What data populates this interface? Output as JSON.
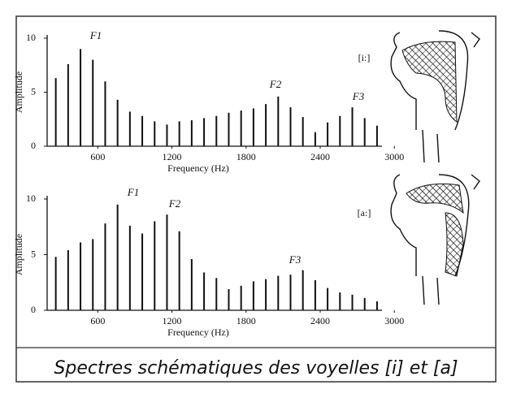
{
  "chart_data": [
    {
      "type": "bar",
      "label": "[i:]",
      "xlabel": "Frequency (Hz)",
      "ylabel": "Amplitude",
      "annotations": [
        "F1",
        "F2",
        "F3"
      ],
      "x": [
        260,
        360,
        460,
        560,
        660,
        760,
        860,
        960,
        1060,
        1160,
        1260,
        1360,
        1460,
        1560,
        1660,
        1760,
        1860,
        1960,
        2060,
        2160,
        2260,
        2360,
        2460,
        2560,
        2660,
        2760,
        2860
      ],
      "values": [
        6.3,
        7.6,
        9.0,
        8.0,
        6.0,
        4.3,
        3.2,
        2.8,
        2.3,
        2.0,
        2.3,
        2.4,
        2.6,
        2.8,
        3.1,
        3.3,
        3.5,
        3.9,
        4.6,
        3.6,
        2.7,
        1.3,
        2.2,
        2.8,
        3.6,
        2.6,
        1.9
      ],
      "color": "#111111",
      "xlim": [
        190,
        2900
      ],
      "ylim": [
        0,
        10
      ],
      "xticks": [
        600,
        1200,
        1800,
        2400,
        3000
      ],
      "yticks": [
        0,
        5,
        10
      ]
    },
    {
      "type": "bar",
      "label": "[a:]",
      "xlabel": "Frequency (Hz)",
      "ylabel": "Amplitude",
      "annotations": [
        "F1",
        "F2",
        "F3"
      ],
      "x": [
        260,
        360,
        460,
        560,
        660,
        760,
        860,
        960,
        1060,
        1160,
        1260,
        1360,
        1460,
        1560,
        1660,
        1760,
        1860,
        1960,
        2060,
        2160,
        2260,
        2360,
        2460,
        2560,
        2660,
        2760,
        2860
      ],
      "values": [
        4.8,
        5.4,
        6.1,
        6.4,
        7.8,
        9.5,
        7.6,
        6.9,
        8.0,
        8.6,
        7.1,
        4.6,
        3.4,
        2.9,
        1.9,
        2.2,
        2.6,
        2.8,
        3.1,
        3.2,
        3.6,
        2.7,
        2.0,
        1.6,
        1.4,
        1.1,
        0.8
      ],
      "color": "#111111",
      "xlim": [
        190,
        2900
      ],
      "ylim": [
        0,
        10
      ],
      "xticks": [
        600,
        1200,
        1800,
        2400,
        3000
      ],
      "yticks": [
        0,
        5,
        10
      ]
    }
  ],
  "caption": "Spectres schématiques des voyelles [i] et [a]"
}
